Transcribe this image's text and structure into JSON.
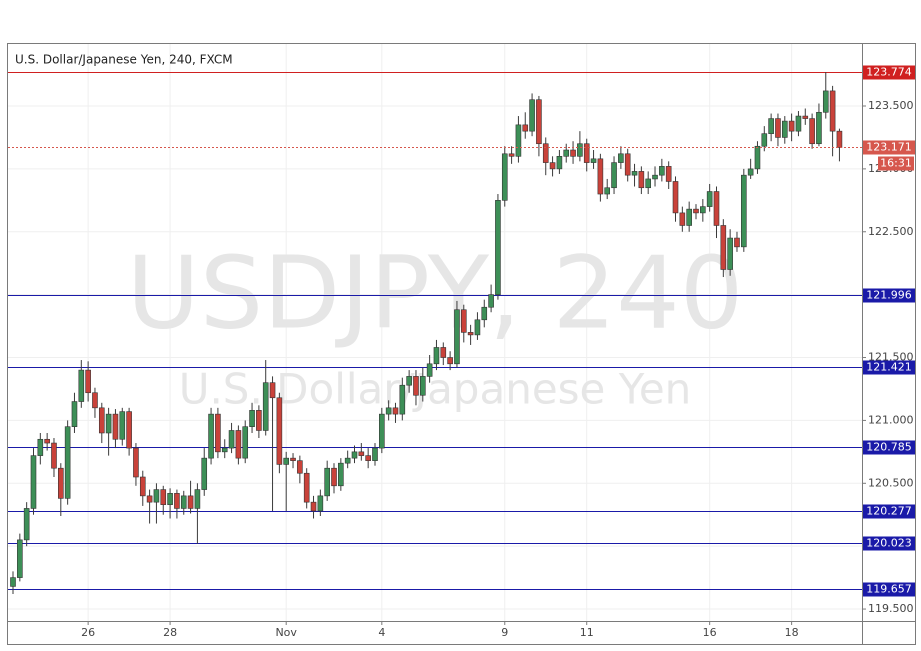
{
  "chart_data": {
    "type": "candlestick",
    "title": "U.S. Dollar/Japanese Yen, 240, FXCM",
    "watermark": "USDJPY, 240",
    "watermark_subtitle": "U.S. Dollar/Japanese Yen",
    "up_color": "#3d8f57",
    "down_color": "#c9423a",
    "grid": true,
    "categories": [
      null,
      null,
      null,
      null,
      null,
      null,
      null,
      null,
      null,
      null,
      null,
      "26",
      null,
      null,
      null,
      null,
      null,
      null,
      null,
      null,
      null,
      null,
      null,
      "28",
      null,
      null,
      null,
      null,
      null,
      null,
      null,
      null,
      null,
      null,
      null,
      null,
      null,
      null,
      null,
      null,
      "Nov",
      null,
      null,
      null,
      null,
      null,
      null,
      null,
      null,
      null,
      null,
      null,
      null,
      null,
      "4",
      null,
      null,
      null,
      null,
      null,
      null,
      null,
      null,
      null,
      null,
      null,
      null,
      null,
      null,
      null,
      null,
      null,
      "9",
      null,
      null,
      null,
      null,
      null,
      null,
      null,
      null,
      null,
      null,
      null,
      "11",
      null,
      null,
      null,
      null,
      null,
      null,
      null,
      null,
      null,
      null,
      null,
      null,
      null,
      null,
      null,
      null,
      null,
      "16",
      null,
      null,
      null,
      null,
      null,
      null,
      null,
      null,
      null,
      null,
      null,
      "18",
      null,
      null,
      null,
      null,
      null,
      null,
      null
    ],
    "open": [
      119.68,
      119.75,
      120.05,
      120.3,
      120.72,
      120.85,
      120.82,
      120.62,
      120.38,
      120.95,
      121.15,
      121.4,
      121.22,
      121.1,
      120.9,
      121.05,
      120.85,
      121.07,
      120.78,
      120.55,
      120.4,
      120.35,
      120.45,
      120.33,
      120.42,
      120.3,
      120.4,
      120.3,
      120.45,
      120.7,
      121.05,
      120.75,
      120.78,
      120.92,
      120.7,
      120.95,
      121.08,
      120.92,
      121.3,
      121.18,
      120.65,
      120.7,
      120.68,
      120.58,
      120.35,
      120.28,
      120.4,
      120.62,
      120.48,
      120.66,
      120.7,
      120.75,
      120.72,
      120.68,
      120.78,
      121.05,
      121.1,
      121.05,
      121.28,
      121.35,
      121.2,
      121.35,
      121.45,
      121.58,
      121.5,
      121.45,
      121.88,
      121.7,
      121.68,
      121.8,
      121.9,
      122.0,
      122.75,
      123.12,
      123.1,
      123.35,
      123.3,
      123.55,
      123.2,
      123.05,
      123.0,
      123.1,
      123.15,
      123.1,
      123.2,
      123.05,
      123.08,
      122.8,
      122.85,
      123.05,
      123.12,
      122.95,
      122.98,
      122.85,
      122.92,
      122.95,
      123.02,
      122.9,
      122.65,
      122.55,
      122.68,
      122.65,
      122.7,
      122.82,
      122.55,
      122.2,
      122.45,
      122.38,
      122.95,
      123.0,
      123.18,
      123.28,
      123.4,
      123.25,
      123.38,
      123.3,
      123.42,
      123.4,
      123.2,
      123.45,
      123.62,
      123.3
    ],
    "high": [
      119.8,
      120.1,
      120.35,
      120.78,
      120.9,
      120.9,
      120.86,
      120.66,
      121.0,
      121.22,
      121.48,
      121.47,
      121.26,
      121.14,
      121.1,
      121.09,
      121.1,
      121.1,
      120.82,
      120.6,
      120.45,
      120.5,
      120.48,
      120.46,
      120.45,
      120.44,
      120.52,
      120.5,
      120.78,
      121.1,
      121.1,
      120.85,
      120.98,
      120.96,
      121.0,
      121.14,
      121.12,
      121.48,
      121.35,
      121.22,
      120.75,
      120.74,
      120.72,
      120.62,
      120.4,
      120.45,
      120.68,
      120.66,
      120.7,
      120.76,
      120.8,
      120.82,
      120.78,
      120.82,
      121.1,
      121.16,
      121.14,
      121.34,
      121.4,
      121.4,
      121.42,
      121.52,
      121.64,
      121.62,
      121.55,
      121.95,
      121.92,
      121.76,
      121.86,
      121.96,
      122.08,
      122.8,
      123.18,
      123.18,
      123.42,
      123.45,
      123.6,
      123.58,
      123.25,
      123.1,
      123.15,
      123.2,
      123.22,
      123.3,
      123.24,
      123.15,
      123.12,
      122.92,
      123.1,
      123.18,
      123.16,
      123.04,
      123.02,
      122.98,
      123.02,
      123.08,
      123.06,
      122.94,
      122.7,
      122.74,
      122.72,
      122.76,
      122.88,
      122.86,
      122.6,
      122.52,
      122.5,
      123.0,
      123.08,
      123.22,
      123.34,
      123.44,
      123.44,
      123.42,
      123.44,
      123.46,
      123.48,
      123.44,
      123.52,
      123.77,
      123.66,
      123.32
    ],
    "low": [
      119.62,
      119.72,
      120.0,
      120.25,
      120.65,
      120.76,
      120.55,
      120.24,
      120.33,
      120.9,
      121.1,
      121.15,
      121.02,
      120.82,
      120.72,
      120.78,
      120.8,
      120.72,
      120.48,
      120.32,
      120.18,
      120.18,
      120.25,
      120.22,
      120.22,
      120.25,
      120.26,
      120.02,
      120.4,
      120.65,
      120.7,
      120.7,
      120.74,
      120.65,
      120.66,
      120.9,
      120.86,
      120.88,
      120.28,
      120.58,
      120.28,
      120.62,
      120.5,
      120.3,
      120.22,
      120.24,
      120.36,
      120.42,
      120.44,
      120.62,
      120.66,
      120.68,
      120.62,
      120.64,
      120.74,
      121.0,
      120.98,
      121.0,
      121.22,
      121.12,
      121.15,
      121.3,
      121.4,
      121.44,
      121.4,
      121.42,
      121.62,
      121.6,
      121.64,
      121.74,
      121.86,
      121.96,
      122.7,
      123.04,
      123.05,
      123.24,
      123.26,
      123.1,
      122.95,
      122.94,
      122.96,
      123.05,
      123.04,
      123.06,
      122.98,
      123.0,
      122.74,
      122.76,
      122.8,
      123.0,
      122.9,
      122.86,
      122.8,
      122.8,
      122.86,
      122.9,
      122.84,
      122.58,
      122.5,
      122.5,
      122.6,
      122.58,
      122.66,
      122.45,
      122.14,
      122.15,
      122.34,
      122.34,
      122.92,
      122.96,
      123.14,
      123.22,
      123.18,
      123.2,
      123.22,
      123.26,
      123.35,
      123.16,
      123.18,
      123.4,
      123.1,
      123.06
    ],
    "close": [
      119.75,
      120.05,
      120.3,
      120.72,
      120.85,
      120.82,
      120.62,
      120.38,
      120.95,
      121.15,
      121.4,
      121.22,
      121.1,
      120.9,
      121.05,
      120.85,
      121.07,
      120.78,
      120.55,
      120.4,
      120.35,
      120.45,
      120.33,
      120.42,
      120.3,
      120.4,
      120.3,
      120.45,
      120.7,
      121.05,
      120.75,
      120.78,
      120.92,
      120.7,
      120.95,
      121.08,
      120.92,
      121.3,
      121.18,
      120.65,
      120.7,
      120.68,
      120.58,
      120.35,
      120.28,
      120.4,
      120.62,
      120.48,
      120.66,
      120.7,
      120.75,
      120.72,
      120.68,
      120.78,
      121.05,
      121.1,
      121.05,
      121.28,
      121.35,
      121.2,
      121.35,
      121.45,
      121.58,
      121.5,
      121.45,
      121.88,
      121.7,
      121.68,
      121.8,
      121.9,
      122.0,
      122.75,
      123.12,
      123.1,
      123.35,
      123.3,
      123.55,
      123.2,
      123.05,
      123.0,
      123.1,
      123.15,
      123.1,
      123.2,
      123.05,
      123.08,
      122.8,
      122.85,
      123.05,
      123.12,
      122.95,
      122.98,
      122.85,
      122.92,
      122.95,
      123.02,
      122.9,
      122.65,
      122.55,
      122.68,
      122.65,
      122.7,
      122.82,
      122.55,
      122.2,
      122.45,
      122.38,
      122.95,
      123.0,
      123.18,
      123.28,
      123.4,
      123.25,
      123.38,
      123.3,
      123.42,
      123.4,
      123.2,
      123.45,
      123.62,
      123.3,
      123.17
    ],
    "ylim": [
      119.405,
      123.993
    ],
    "yticks": [
      {
        "value": 119.5,
        "label": "119.500"
      },
      {
        "value": 120.0,
        "label": "120.000"
      },
      {
        "value": 120.5,
        "label": "120.500"
      },
      {
        "value": 121.0,
        "label": "121.000"
      },
      {
        "value": 121.5,
        "label": "121.500"
      },
      {
        "value": 122.0,
        "label": "122.000"
      },
      {
        "value": 122.5,
        "label": "122.500"
      },
      {
        "value": 123.0,
        "label": "123.000"
      },
      {
        "value": 123.5,
        "label": "123.500"
      }
    ],
    "horizontal_lines": [
      {
        "value": 123.774,
        "color": "#d02020"
      },
      {
        "value": 121.996,
        "color": "#1a1aa8"
      },
      {
        "value": 121.421,
        "color": "#1a1aa8"
      },
      {
        "value": 120.785,
        "color": "#1a1aa8"
      },
      {
        "value": 120.277,
        "color": "#1a1aa8"
      },
      {
        "value": 120.023,
        "color": "#1a1aa8"
      },
      {
        "value": 119.657,
        "color": "#1a1aa8"
      }
    ],
    "current_price": {
      "value": 123.171,
      "countdown": "16:31",
      "color": "#d6574d"
    }
  }
}
